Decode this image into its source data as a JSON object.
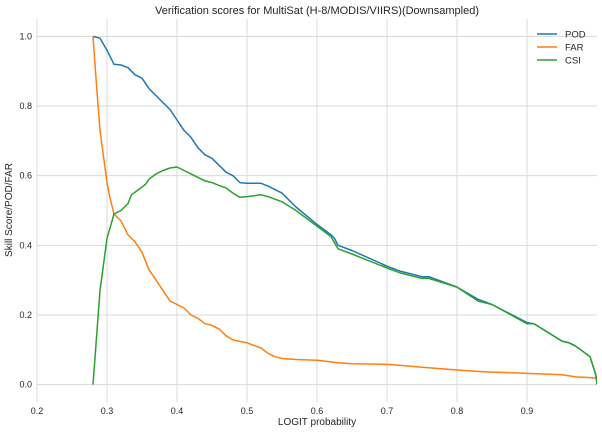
{
  "chart_data": {
    "type": "line",
    "title": "Verification scores for MultiSat (H-8/MODIS/VIIRS)(Downsampled)",
    "xlabel": "LOGIT probability",
    "ylabel": "Skill Score/POD/FAR",
    "xlim": [
      0.2,
      1.0
    ],
    "ylim": [
      -0.05,
      1.05
    ],
    "x_ticks": [
      "0.2",
      "0.3",
      "0.4",
      "0.5",
      "0.6",
      "0.7",
      "0.8",
      "0.9"
    ],
    "x_tick_values": [
      0.2,
      0.3,
      0.4,
      0.5,
      0.6,
      0.7,
      0.8,
      0.9
    ],
    "y_ticks": [
      "0.0",
      "0.2",
      "0.4",
      "0.6",
      "0.8",
      "1.0"
    ],
    "y_tick_values": [
      0.0,
      0.2,
      0.4,
      0.6,
      0.8,
      1.0
    ],
    "grid": true,
    "legend_position": "top-right",
    "series": [
      {
        "name": "POD",
        "color": "#1f77b4",
        "points": [
          [
            0.28,
            1.0
          ],
          [
            0.29,
            0.995
          ],
          [
            0.3,
            0.96
          ],
          [
            0.31,
            0.92
          ],
          [
            0.32,
            0.918
          ],
          [
            0.33,
            0.91
          ],
          [
            0.34,
            0.89
          ],
          [
            0.35,
            0.88
          ],
          [
            0.36,
            0.85
          ],
          [
            0.37,
            0.83
          ],
          [
            0.38,
            0.81
          ],
          [
            0.39,
            0.79
          ],
          [
            0.4,
            0.76
          ],
          [
            0.41,
            0.73
          ],
          [
            0.42,
            0.71
          ],
          [
            0.43,
            0.68
          ],
          [
            0.44,
            0.66
          ],
          [
            0.45,
            0.65
          ],
          [
            0.46,
            0.63
          ],
          [
            0.47,
            0.61
          ],
          [
            0.48,
            0.6
          ],
          [
            0.49,
            0.58
          ],
          [
            0.5,
            0.578
          ],
          [
            0.52,
            0.578
          ],
          [
            0.53,
            0.57
          ],
          [
            0.55,
            0.55
          ],
          [
            0.57,
            0.51
          ],
          [
            0.6,
            0.46
          ],
          [
            0.62,
            0.43
          ],
          [
            0.625,
            0.42
          ],
          [
            0.63,
            0.4
          ],
          [
            0.65,
            0.385
          ],
          [
            0.7,
            0.34
          ],
          [
            0.72,
            0.325
          ],
          [
            0.75,
            0.31
          ],
          [
            0.76,
            0.31
          ],
          [
            0.8,
            0.28
          ],
          [
            0.83,
            0.245
          ],
          [
            0.85,
            0.23
          ],
          [
            0.9,
            0.178
          ],
          [
            0.91,
            0.175
          ],
          [
            0.95,
            0.125
          ],
          [
            0.96,
            0.12
          ],
          [
            0.97,
            0.11
          ],
          [
            0.99,
            0.08
          ],
          [
            0.998,
            0.03
          ],
          [
            1.0,
            0.01
          ]
        ]
      },
      {
        "name": "FAR",
        "color": "#ff7f0e",
        "points": [
          [
            0.28,
            1.0
          ],
          [
            0.285,
            0.86
          ],
          [
            0.29,
            0.73
          ],
          [
            0.3,
            0.58
          ],
          [
            0.305,
            0.53
          ],
          [
            0.31,
            0.49
          ],
          [
            0.32,
            0.47
          ],
          [
            0.33,
            0.43
          ],
          [
            0.34,
            0.41
          ],
          [
            0.35,
            0.38
          ],
          [
            0.36,
            0.33
          ],
          [
            0.37,
            0.3
          ],
          [
            0.38,
            0.27
          ],
          [
            0.39,
            0.24
          ],
          [
            0.4,
            0.23
          ],
          [
            0.41,
            0.22
          ],
          [
            0.42,
            0.2
          ],
          [
            0.43,
            0.19
          ],
          [
            0.44,
            0.175
          ],
          [
            0.45,
            0.17
          ],
          [
            0.46,
            0.16
          ],
          [
            0.47,
            0.14
          ],
          [
            0.48,
            0.128
          ],
          [
            0.5,
            0.12
          ],
          [
            0.52,
            0.105
          ],
          [
            0.53,
            0.09
          ],
          [
            0.54,
            0.08
          ],
          [
            0.55,
            0.075
          ],
          [
            0.57,
            0.072
          ],
          [
            0.6,
            0.07
          ],
          [
            0.63,
            0.063
          ],
          [
            0.65,
            0.06
          ],
          [
            0.7,
            0.058
          ],
          [
            0.72,
            0.055
          ],
          [
            0.75,
            0.05
          ],
          [
            0.78,
            0.045
          ],
          [
            0.8,
            0.042
          ],
          [
            0.83,
            0.038
          ],
          [
            0.85,
            0.036
          ],
          [
            0.88,
            0.034
          ],
          [
            0.9,
            0.032
          ],
          [
            0.95,
            0.028
          ],
          [
            0.97,
            0.022
          ],
          [
            0.99,
            0.02
          ],
          [
            1.0,
            0.018
          ]
        ]
      },
      {
        "name": "CSI",
        "color": "#2ca02c",
        "points": [
          [
            0.28,
            0.0
          ],
          [
            0.29,
            0.27
          ],
          [
            0.3,
            0.42
          ],
          [
            0.31,
            0.49
          ],
          [
            0.32,
            0.5
          ],
          [
            0.33,
            0.52
          ],
          [
            0.335,
            0.545
          ],
          [
            0.345,
            0.56
          ],
          [
            0.355,
            0.575
          ],
          [
            0.36,
            0.59
          ],
          [
            0.37,
            0.605
          ],
          [
            0.38,
            0.615
          ],
          [
            0.39,
            0.622
          ],
          [
            0.4,
            0.625
          ],
          [
            0.41,
            0.615
          ],
          [
            0.42,
            0.605
          ],
          [
            0.43,
            0.595
          ],
          [
            0.44,
            0.585
          ],
          [
            0.45,
            0.58
          ],
          [
            0.46,
            0.572
          ],
          [
            0.47,
            0.565
          ],
          [
            0.48,
            0.55
          ],
          [
            0.49,
            0.538
          ],
          [
            0.5,
            0.54
          ],
          [
            0.52,
            0.545
          ],
          [
            0.53,
            0.54
          ],
          [
            0.55,
            0.525
          ],
          [
            0.57,
            0.5
          ],
          [
            0.6,
            0.455
          ],
          [
            0.62,
            0.425
          ],
          [
            0.63,
            0.39
          ],
          [
            0.65,
            0.375
          ],
          [
            0.7,
            0.335
          ],
          [
            0.72,
            0.32
          ],
          [
            0.75,
            0.305
          ],
          [
            0.76,
            0.305
          ],
          [
            0.8,
            0.28
          ],
          [
            0.83,
            0.24
          ],
          [
            0.85,
            0.23
          ],
          [
            0.9,
            0.175
          ],
          [
            0.91,
            0.175
          ],
          [
            0.95,
            0.125
          ],
          [
            0.96,
            0.12
          ],
          [
            0.97,
            0.11
          ],
          [
            0.99,
            0.08
          ],
          [
            0.998,
            0.03
          ],
          [
            1.0,
            0.0
          ]
        ]
      }
    ]
  }
}
